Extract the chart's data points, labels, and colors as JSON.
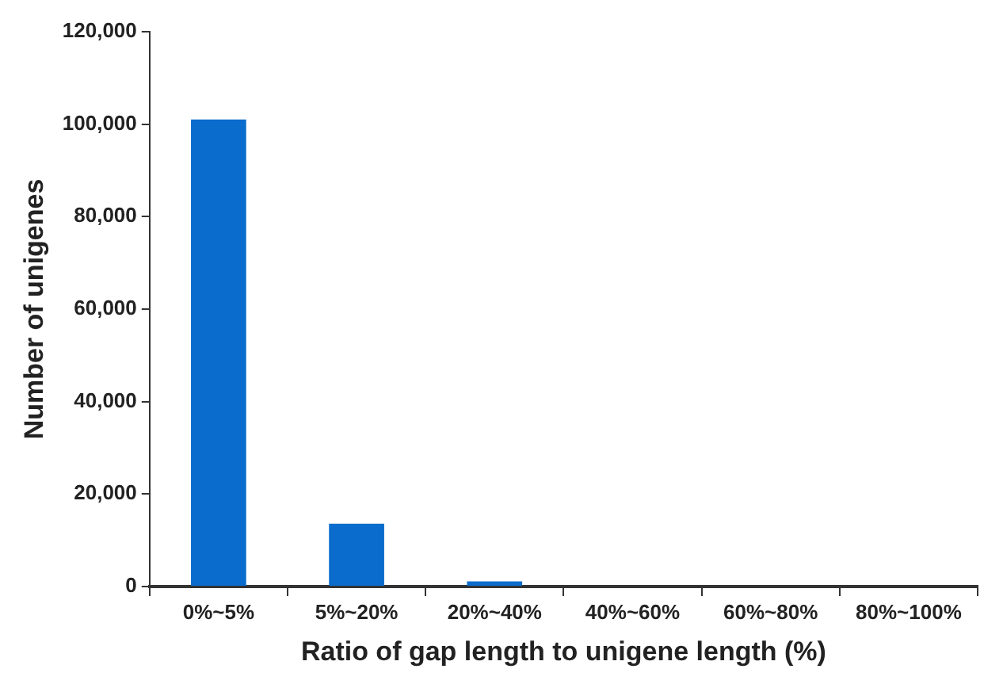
{
  "chart_data": {
    "type": "bar",
    "xlabel": "Ratio of gap length to unigene length (%)",
    "ylabel": "Number of unigenes",
    "categories": [
      "0%~5%",
      "5%~20%",
      "20%~40%",
      "40%~60%",
      "60%~80%",
      "80%~100%"
    ],
    "values": [
      101000,
      13600,
      1100,
      0,
      0,
      0
    ],
    "color": "#0a6ccc",
    "ylim": [
      0,
      120000
    ],
    "yticks": [
      0,
      {
        "value": 20000,
        "label": "20,000"
      },
      {
        "value": 40000,
        "label": "40,000"
      },
      {
        "value": 60000,
        "label": "60,000"
      },
      {
        "value": 80000,
        "label": "80,000"
      },
      {
        "value": 100000,
        "label": "100,000"
      },
      {
        "value": 120000,
        "label": "120,000"
      }
    ],
    "grid": false,
    "legend": false
  }
}
